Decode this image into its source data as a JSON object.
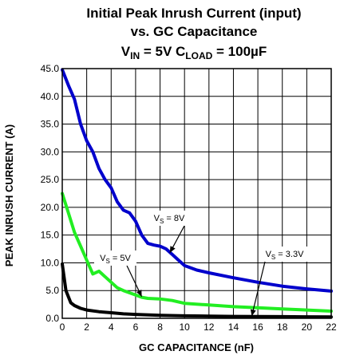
{
  "chart_data": {
    "type": "line",
    "title_lines": [
      "Initial Peak Inrush Current (input)",
      "vs. GC Capacitance"
    ],
    "subtitle": {
      "v": "V",
      "in_sub": "IN",
      "v_eq": " = 5V C",
      "load_sub": "LOAD",
      "load_eq": " = 100µF"
    },
    "xlabel": "GC CAPACITANCE (nF)",
    "ylabel": "PEAK INRUSH CURRENT (A)",
    "xlim": [
      0,
      22
    ],
    "ylim": [
      0,
      45
    ],
    "x_ticks": [
      "0",
      "2",
      "4",
      "6",
      "8",
      "10",
      "12",
      "14",
      "16",
      "18",
      "20",
      "22"
    ],
    "y_ticks": [
      "0.0",
      "5.0",
      "10.0",
      "15.0",
      "20.0",
      "25.0",
      "30.0",
      "35.0",
      "40.0",
      "45.0"
    ],
    "grid": true,
    "series": [
      {
        "name": "VS = 8V",
        "color": "#0000cc",
        "points": [
          [
            0,
            44.8
          ],
          [
            0.5,
            42
          ],
          [
            1,
            39.5
          ],
          [
            1.5,
            35
          ],
          [
            2,
            32
          ],
          [
            2.5,
            30
          ],
          [
            3,
            27
          ],
          [
            3.5,
            25
          ],
          [
            4,
            23.5
          ],
          [
            4.5,
            21
          ],
          [
            5,
            19.5
          ],
          [
            5.5,
            19
          ],
          [
            6,
            17.5
          ],
          [
            6.5,
            15
          ],
          [
            7,
            13.5
          ],
          [
            7.5,
            13.2
          ],
          [
            8,
            13
          ],
          [
            8.5,
            12.5
          ],
          [
            9,
            11.5
          ],
          [
            9.5,
            10.5
          ],
          [
            10,
            9.5
          ],
          [
            11,
            8.7
          ],
          [
            12,
            8.2
          ],
          [
            14,
            7.3
          ],
          [
            16,
            6.5
          ],
          [
            18,
            5.8
          ],
          [
            20,
            5.3
          ],
          [
            22,
            4.9
          ]
        ]
      },
      {
        "name": "VS = 5V",
        "color": "#22ee22",
        "points": [
          [
            0,
            22.5
          ],
          [
            0.5,
            19
          ],
          [
            1,
            15.5
          ],
          [
            1.5,
            13
          ],
          [
            2,
            10.5
          ],
          [
            2.5,
            8
          ],
          [
            3,
            8.5
          ],
          [
            3.5,
            7.5
          ],
          [
            4,
            6.5
          ],
          [
            4.5,
            5.5
          ],
          [
            5,
            5
          ],
          [
            5.5,
            4.6
          ],
          [
            6,
            4.2
          ],
          [
            6.5,
            3.8
          ],
          [
            7,
            3.6
          ],
          [
            8,
            3.5
          ],
          [
            9,
            3.2
          ],
          [
            10,
            2.7
          ],
          [
            12,
            2.4
          ],
          [
            14,
            2.1
          ],
          [
            16,
            1.9
          ],
          [
            18,
            1.7
          ],
          [
            20,
            1.5
          ],
          [
            22,
            1.3
          ]
        ]
      },
      {
        "name": "VS = 3.3V",
        "color": "#000000",
        "points": [
          [
            0,
            9.8
          ],
          [
            0.3,
            5
          ],
          [
            0.7,
            2.8
          ],
          [
            1,
            2.3
          ],
          [
            1.5,
            1.8
          ],
          [
            2,
            1.5
          ],
          [
            3,
            1.2
          ],
          [
            4,
            1.0
          ],
          [
            5,
            0.8
          ],
          [
            6,
            0.7
          ],
          [
            8,
            0.55
          ],
          [
            10,
            0.45
          ],
          [
            12,
            0.4
          ],
          [
            14,
            0.35
          ],
          [
            16,
            0.33
          ],
          [
            18,
            0.3
          ],
          [
            20,
            0.28
          ],
          [
            22,
            0.25
          ]
        ]
      }
    ],
    "annotations": [
      {
        "series": 0,
        "main": "V",
        "sub": "S",
        "eq": " = 8V",
        "arrow_to": [
          8.8,
          11.8
        ]
      },
      {
        "series": 1,
        "main": "V",
        "sub": "S",
        "eq": " = 5V",
        "arrow_to": [
          6.5,
          3.9
        ]
      },
      {
        "series": 2,
        "main": "V",
        "sub": "S",
        "eq": " = 3.3V",
        "arrow_to": [
          15.5,
          0.4
        ]
      }
    ]
  }
}
